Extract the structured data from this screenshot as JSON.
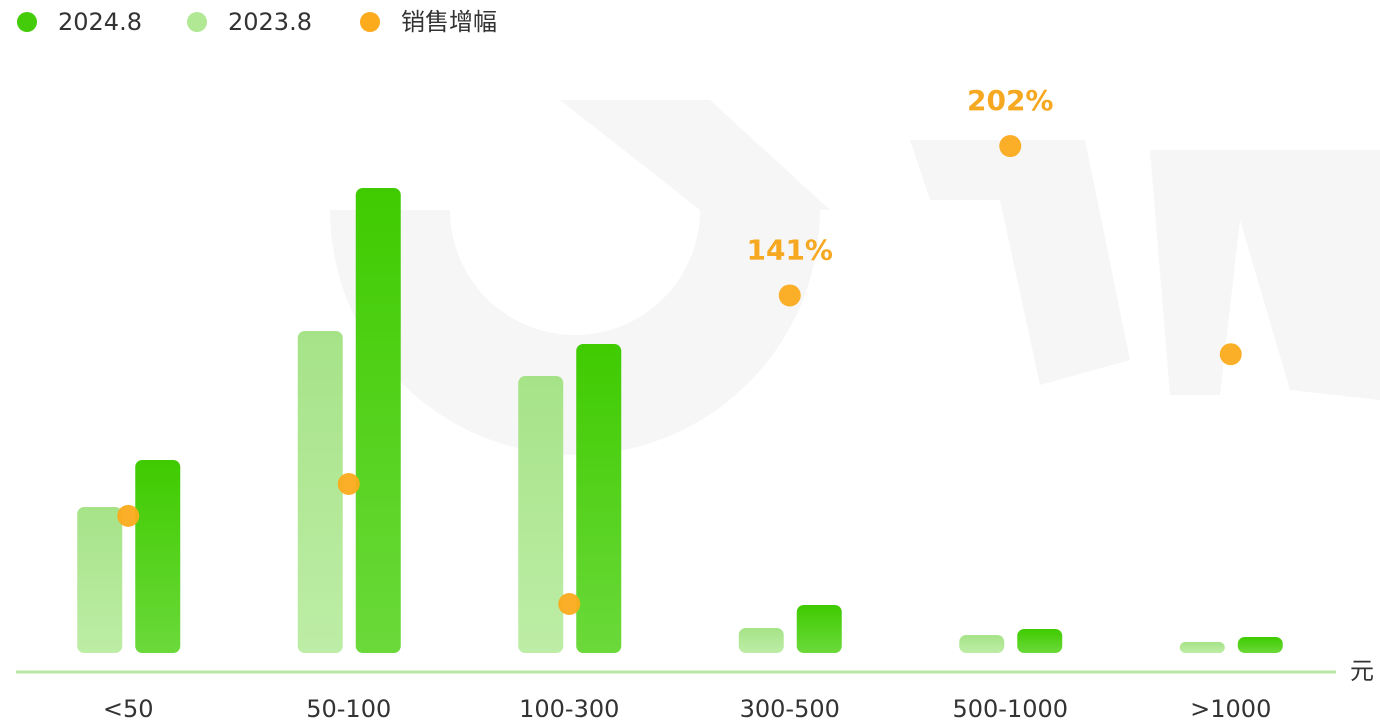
{
  "chart_data": {
    "type": "bar",
    "x_label": "元",
    "categories": [
      "<50",
      "50-100",
      "100-300",
      "300-500",
      "500-1000",
      ">1000"
    ],
    "ylim": [
      0,
      600
    ],
    "y2lim": [
      -5,
      240
    ],
    "series": [
      {
        "name": "2024.8",
        "color": "#44cc0a",
        "values": [
          193,
          465,
          309,
          48,
          24,
          16
        ]
      },
      {
        "name": "2023.8",
        "color": "#b0e894",
        "values": [
          146,
          322,
          277,
          25,
          18,
          11
        ]
      },
      {
        "name": "销售增幅",
        "color": "#fbab1c",
        "axis": "y2",
        "values": [
          51,
          64,
          15,
          141,
          202,
          117
        ],
        "value_labels": [
          null,
          null,
          null,
          "141%",
          "202%",
          null
        ]
      }
    ],
    "legend": "top-left"
  }
}
